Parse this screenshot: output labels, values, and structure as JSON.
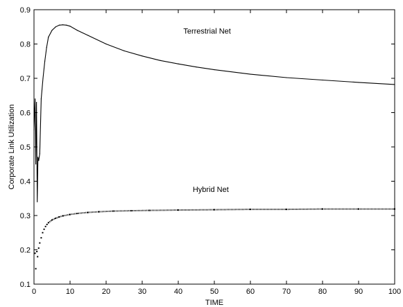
{
  "chart_data": {
    "type": "line",
    "title": "",
    "xlabel": "TIME",
    "ylabel": "Corporate Link Utilization",
    "xlim": [
      0,
      100
    ],
    "ylim": [
      0.1,
      0.9
    ],
    "grid": false,
    "legend": "none",
    "x_ticks": [
      "0",
      "10",
      "20",
      "30",
      "40",
      "50",
      "60",
      "70",
      "80",
      "90",
      "100"
    ],
    "y_ticks": [
      "0.1",
      "0.2",
      "0.3",
      "0.4",
      "0.5",
      "0.6",
      "0.7",
      "0.8",
      "0.9"
    ],
    "annotations": [
      {
        "text": "Terrestrial Net",
        "x": 48,
        "y": 0.838
      },
      {
        "text": "Hybrid Net",
        "x": 49,
        "y": 0.377
      }
    ],
    "series": [
      {
        "style": "line",
        "color": "#000000",
        "x": [
          0,
          0.3,
          0.5,
          0.7,
          0.9,
          1.1,
          1.3,
          1.6,
          2,
          2.5,
          3,
          3.5,
          4,
          5,
          6,
          7,
          8,
          9,
          10,
          12,
          15,
          20,
          25,
          30,
          35,
          40,
          45,
          50,
          60,
          70,
          80,
          90,
          100
        ],
        "y": [
          0.55,
          0.64,
          0.45,
          0.63,
          0.34,
          0.47,
          0.46,
          0.48,
          0.64,
          0.7,
          0.75,
          0.79,
          0.82,
          0.84,
          0.85,
          0.855,
          0.856,
          0.855,
          0.852,
          0.84,
          0.825,
          0.8,
          0.78,
          0.765,
          0.752,
          0.742,
          0.733,
          0.725,
          0.712,
          0.702,
          0.695,
          0.688,
          0.682
        ]
      },
      {
        "style": "dots",
        "color": "#000000",
        "x": [
          0.3,
          0.5,
          0.8,
          1.0,
          1.3,
          1.6,
          2.0,
          2.4,
          2.8,
          3.2,
          3.6,
          4,
          5,
          6,
          7,
          8,
          10,
          12,
          15,
          18,
          22,
          27,
          32,
          40,
          50,
          60,
          70,
          80,
          90,
          100
        ],
        "y": [
          0.19,
          0.145,
          0.195,
          0.18,
          0.205,
          0.22,
          0.235,
          0.25,
          0.26,
          0.268,
          0.274,
          0.279,
          0.287,
          0.292,
          0.296,
          0.299,
          0.303,
          0.306,
          0.309,
          0.311,
          0.313,
          0.314,
          0.315,
          0.316,
          0.317,
          0.318,
          0.318,
          0.319,
          0.319,
          0.319
        ]
      }
    ]
  }
}
